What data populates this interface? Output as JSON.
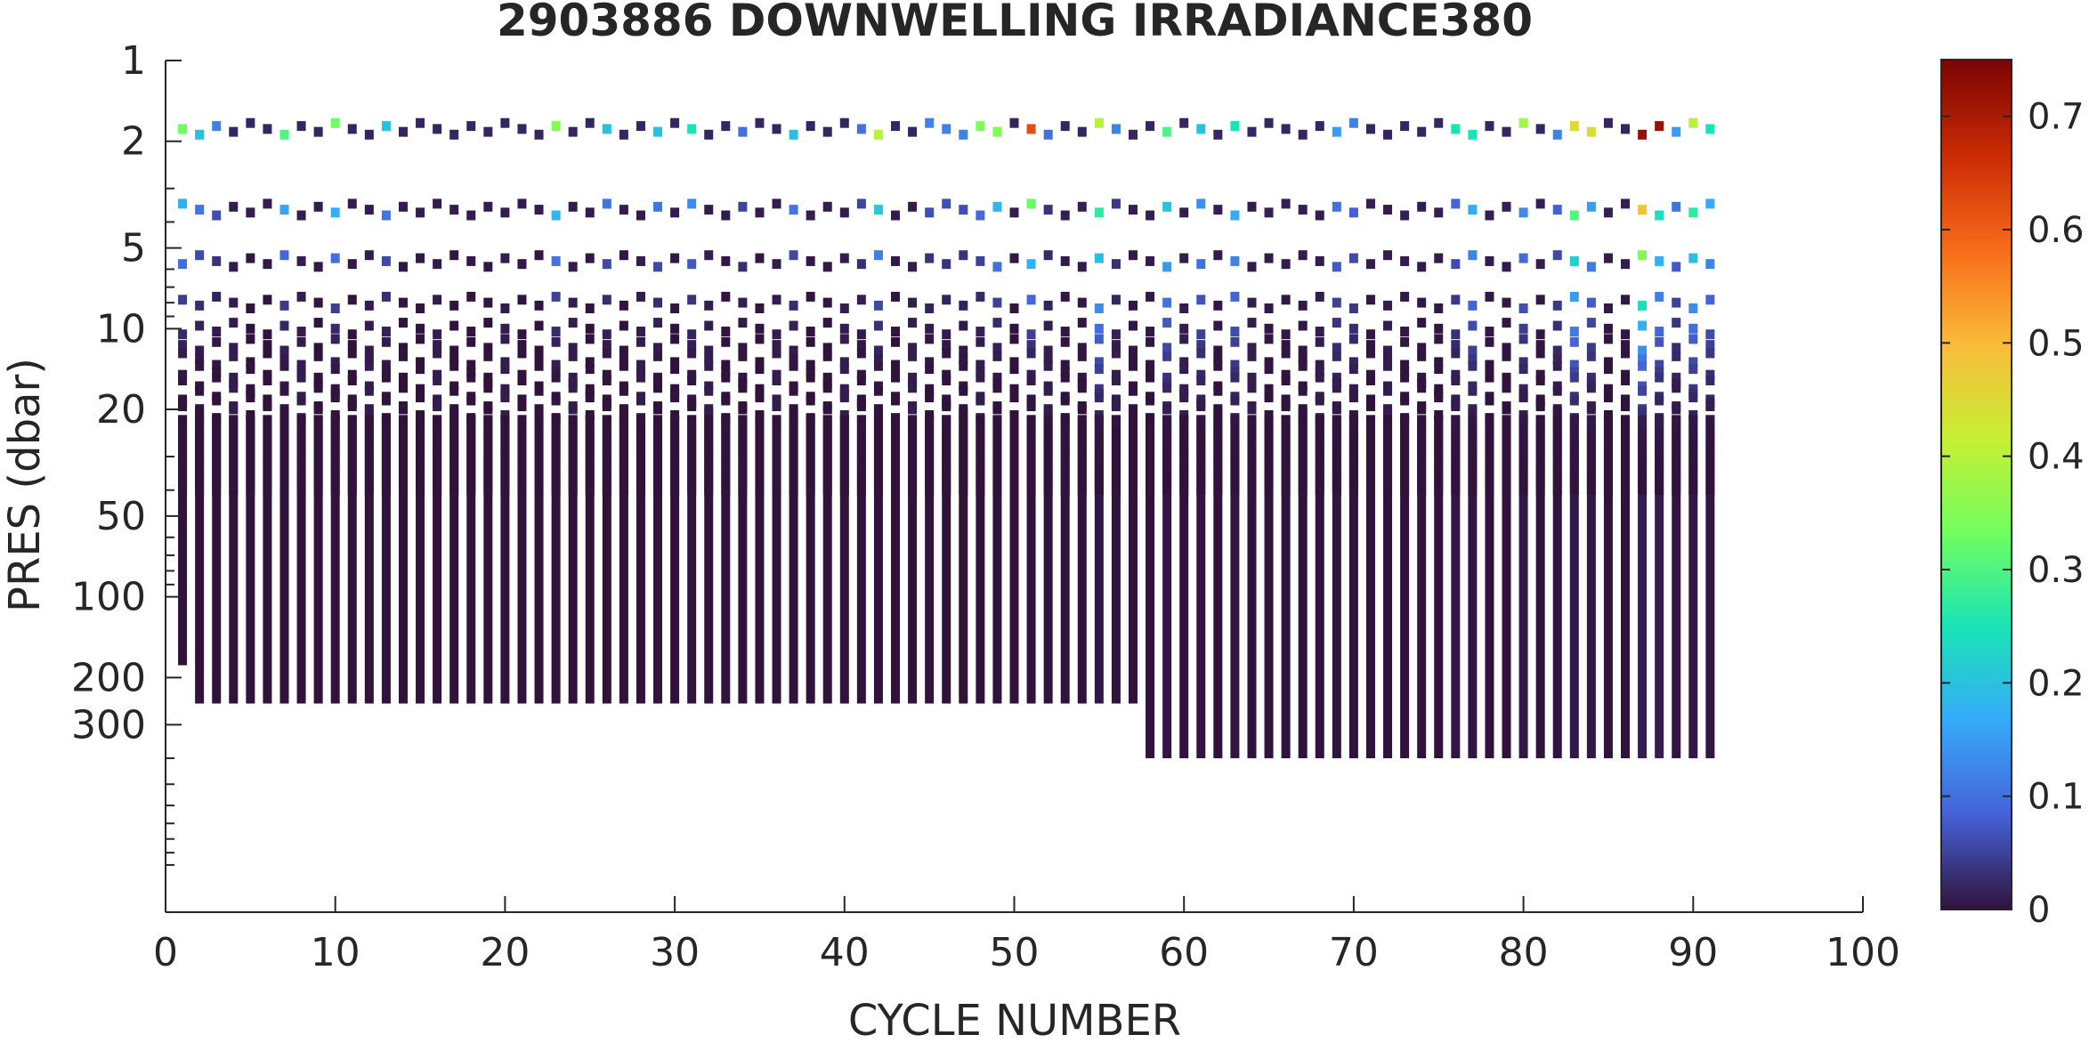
{
  "chart_data": {
    "type": "heatmap",
    "title": "2903886  DOWNWELLING IRRADIANCE380",
    "xlabel": "CYCLE NUMBER",
    "ylabel": "PRES (dbar)",
    "x_range": [
      0,
      100
    ],
    "y_range": [
      1,
      1500
    ],
    "y_scale": "log",
    "y_reversed": true,
    "x_ticks": [
      "0",
      "10",
      "20",
      "30",
      "40",
      "50",
      "60",
      "70",
      "80",
      "90",
      "100"
    ],
    "y_ticks": [
      "1",
      "2",
      "5",
      "10",
      "20",
      "50",
      "100",
      "200",
      "300"
    ],
    "colorbar": {
      "range": [
        0,
        0.75
      ],
      "ticks": [
        "0",
        "0.1",
        "0.2",
        "0.3",
        "0.4",
        "0.5",
        "0.6",
        "0.7"
      ],
      "colormap": [
        "#30123b",
        "#4662d7",
        "#36aaf9",
        "#1ae4b6",
        "#72fe5e",
        "#c8ef34",
        "#faba39",
        "#f66b19",
        "#ca2a04",
        "#7a0403"
      ]
    },
    "cycles": [
      1,
      2,
      3,
      4,
      5,
      6,
      7,
      8,
      9,
      10,
      11,
      12,
      13,
      14,
      15,
      16,
      17,
      18,
      19,
      20,
      21,
      22,
      23,
      24,
      25,
      26,
      27,
      28,
      29,
      30,
      31,
      32,
      33,
      34,
      35,
      36,
      37,
      38,
      39,
      40,
      41,
      42,
      43,
      44,
      45,
      46,
      47,
      48,
      49,
      50,
      51,
      52,
      53,
      54,
      55,
      56,
      57,
      58,
      59,
      60,
      61,
      62,
      63,
      64,
      65,
      66,
      67,
      68,
      69,
      70,
      71,
      72,
      73,
      74,
      75,
      76,
      77,
      78,
      79,
      80,
      81,
      82,
      83,
      84,
      85,
      86,
      87,
      88,
      89,
      90,
      91
    ],
    "profile_max_pressure_dbar": {
      "cycle_1": 180,
      "cycles_2_to_57": 250,
      "cycles_58_to_91": 400
    },
    "surface_irradiance_by_cycle": [
      0.33,
      0.2,
      0.12,
      0.02,
      0.02,
      0.02,
      0.3,
      0.02,
      0.02,
      0.33,
      0.02,
      0.02,
      0.2,
      0.02,
      0.02,
      0.02,
      0.02,
      0.02,
      0.02,
      0.02,
      0.02,
      0.02,
      0.35,
      0.02,
      0.02,
      0.2,
      0.02,
      0.02,
      0.2,
      0.02,
      0.25,
      0.02,
      0.02,
      0.1,
      0.02,
      0.02,
      0.2,
      0.02,
      0.02,
      0.02,
      0.1,
      0.4,
      0.02,
      0.02,
      0.12,
      0.12,
      0.12,
      0.35,
      0.35,
      0.02,
      0.62,
      0.1,
      0.02,
      0.02,
      0.4,
      0.12,
      0.02,
      0.02,
      0.3,
      0.02,
      0.2,
      0.02,
      0.25,
      0.02,
      0.02,
      0.02,
      0.02,
      0.02,
      0.15,
      0.12,
      0.02,
      0.02,
      0.02,
      0.02,
      0.02,
      0.25,
      0.25,
      0.02,
      0.02,
      0.38,
      0.02,
      0.12,
      0.45,
      0.45,
      0.02,
      0.02,
      0.72,
      0.72,
      0.15,
      0.4,
      0.25
    ]
  }
}
